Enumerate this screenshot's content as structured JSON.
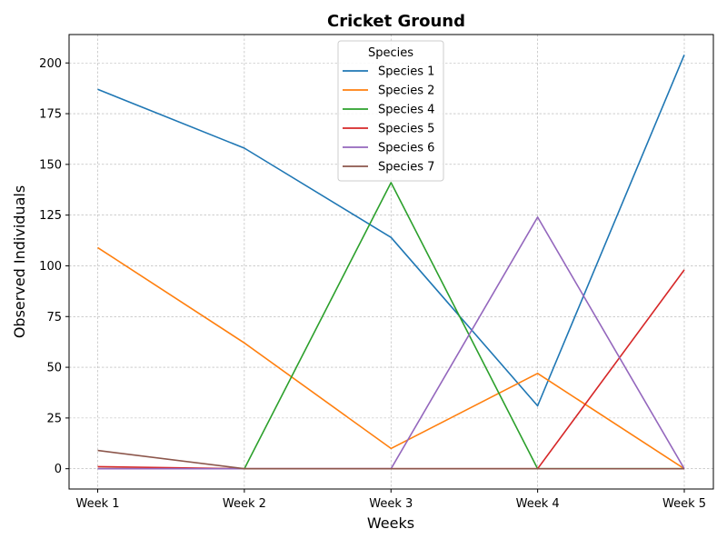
{
  "chart_data": {
    "type": "line",
    "title": "Cricket Ground",
    "xlabel": "Weeks",
    "ylabel": "Observed Individuals",
    "categories": [
      "Week 1",
      "Week 2",
      "Week 3",
      "Week 4",
      "Week 5"
    ],
    "ylim": [
      -10,
      214
    ],
    "yticks": [
      0,
      25,
      50,
      75,
      100,
      125,
      150,
      175,
      200
    ],
    "grid": true,
    "legend": {
      "title": "Species",
      "placement": "top-center"
    },
    "series": [
      {
        "name": "Species 1",
        "color": "#1f77b4",
        "values": [
          187,
          158,
          114,
          31,
          204
        ]
      },
      {
        "name": "Species 2",
        "color": "#ff7f0e",
        "values": [
          109,
          62,
          10,
          47,
          0
        ]
      },
      {
        "name": "Species 4",
        "color": "#2ca02c",
        "values": [
          0,
          0,
          141,
          0,
          0
        ]
      },
      {
        "name": "Species 5",
        "color": "#d62728",
        "values": [
          1,
          0,
          0,
          0,
          98
        ]
      },
      {
        "name": "Species 6",
        "color": "#9467bd",
        "values": [
          0,
          0,
          0,
          124,
          0
        ]
      },
      {
        "name": "Species 7",
        "color": "#8c564b",
        "values": [
          9,
          0,
          0,
          0,
          0
        ]
      }
    ]
  }
}
